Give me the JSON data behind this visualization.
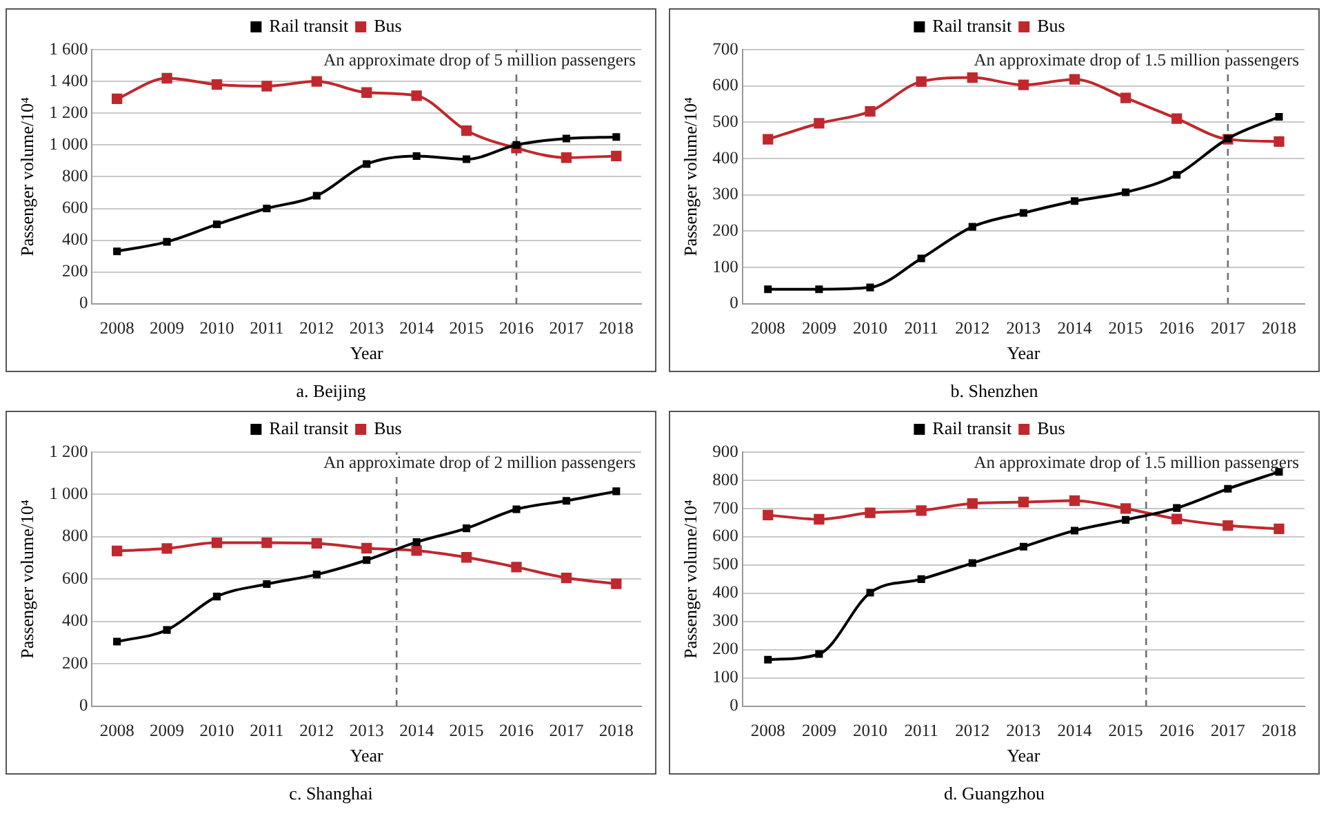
{
  "chart_data": [
    {
      "type": "line",
      "title": "a. Beijing",
      "xlabel": "Year",
      "ylabel": "Passenger volume/10⁴",
      "x": [
        2008,
        2009,
        2010,
        2011,
        2012,
        2013,
        2014,
        2015,
        2016,
        2017,
        2018
      ],
      "xlim": [
        2007.5,
        2018.5
      ],
      "xticks": [
        2008,
        2009,
        2010,
        2011,
        2012,
        2013,
        2014,
        2015,
        2016,
        2017,
        2018
      ],
      "ylim": [
        0,
        1600
      ],
      "yticks": [
        0,
        200,
        400,
        600,
        800,
        {
          "value": 1000,
          "label": "1 000"
        },
        {
          "value": 1200,
          "label": "1 200"
        },
        {
          "value": 1400,
          "label": "1 400"
        },
        {
          "value": 1600,
          "label": "1 600"
        }
      ],
      "grid": "y",
      "legend": "top",
      "marker": "square",
      "line_style": "solid",
      "series": [
        {
          "name": "Rail transit",
          "color": "#000000",
          "values": [
            330,
            390,
            500,
            600,
            680,
            880,
            930,
            910,
            1000,
            1040,
            1050
          ]
        },
        {
          "name": "Bus",
          "color": "#c0282e",
          "values": [
            1290,
            1420,
            1380,
            1370,
            1400,
            1330,
            1310,
            1090,
            980,
            920,
            930
          ]
        }
      ],
      "ref_lines": [
        {
          "axis": "x",
          "value": 2016,
          "color": "#707070",
          "line_style": "dashed"
        }
      ],
      "annotations": [
        "An approximate drop of 5 million passengers"
      ]
    },
    {
      "type": "line",
      "title": "b. Shenzhen",
      "xlabel": "Year",
      "ylabel": "Passenger volume/10⁴",
      "x": [
        2008,
        2009,
        2010,
        2011,
        2012,
        2013,
        2014,
        2015,
        2016,
        2017,
        2018
      ],
      "xlim": [
        2007.5,
        2018.5
      ],
      "xticks": [
        2008,
        2009,
        2010,
        2011,
        2012,
        2013,
        2014,
        2015,
        2016,
        2017,
        2018
      ],
      "ylim": [
        0,
        700
      ],
      "yticks": [
        0,
        100,
        200,
        300,
        400,
        500,
        600,
        700
      ],
      "grid": "y",
      "legend": "top",
      "marker": "square",
      "line_style": "solid",
      "series": [
        {
          "name": "Rail transit",
          "color": "#000000",
          "values": [
            40,
            40,
            45,
            125,
            212,
            250,
            283,
            307,
            355,
            455,
            515
          ]
        },
        {
          "name": "Bus",
          "color": "#c0282e",
          "values": [
            453,
            497,
            530,
            612,
            623,
            603,
            618,
            567,
            510,
            453,
            447
          ]
        }
      ],
      "ref_lines": [
        {
          "axis": "x",
          "value": 2017,
          "color": "#707070",
          "line_style": "dashed"
        }
      ],
      "annotations": [
        "An approximate drop of 1.5 million passengers"
      ]
    },
    {
      "type": "line",
      "title": "c. Shanghai",
      "xlabel": "Year",
      "ylabel": "Passenger volume/10⁴",
      "x": [
        2008,
        2009,
        2010,
        2011,
        2012,
        2013,
        2014,
        2015,
        2016,
        2017,
        2018
      ],
      "xlim": [
        2007.5,
        2018.5
      ],
      "xticks": [
        2008,
        2009,
        2010,
        2011,
        2012,
        2013,
        2014,
        2015,
        2016,
        2017,
        2018
      ],
      "ylim": [
        0,
        1200
      ],
      "yticks": [
        0,
        200,
        400,
        600,
        800,
        {
          "value": 1000,
          "label": "1 000"
        },
        {
          "value": 1200,
          "label": "1 200"
        }
      ],
      "grid": "y",
      "legend": "top",
      "marker": "square",
      "line_style": "solid",
      "series": [
        {
          "name": "Rail transit",
          "color": "#000000",
          "values": [
            305,
            360,
            518,
            577,
            622,
            690,
            775,
            840,
            930,
            970,
            1015
          ]
        },
        {
          "name": "Bus",
          "color": "#c0282e",
          "values": [
            733,
            745,
            772,
            772,
            769,
            746,
            735,
            703,
            657,
            606,
            578
          ]
        }
      ],
      "ref_lines": [
        {
          "axis": "x",
          "value": 2013.6,
          "color": "#707070",
          "line_style": "dashed"
        }
      ],
      "annotations": [
        "An approximate drop of 2 million passengers"
      ]
    },
    {
      "type": "line",
      "title": "d. Guangzhou",
      "xlabel": "Year",
      "ylabel": "Passenger volume/10⁴",
      "x": [
        2008,
        2009,
        2010,
        2011,
        2012,
        2013,
        2014,
        2015,
        2016,
        2017,
        2018
      ],
      "xlim": [
        2007.5,
        2018.5
      ],
      "xticks": [
        2008,
        2009,
        2010,
        2011,
        2012,
        2013,
        2014,
        2015,
        2016,
        2017,
        2018
      ],
      "ylim": [
        0,
        900
      ],
      "yticks": [
        0,
        100,
        200,
        300,
        400,
        500,
        600,
        700,
        800,
        900
      ],
      "grid": "y",
      "legend": "top",
      "marker": "square",
      "line_style": "solid",
      "series": [
        {
          "name": "Rail transit",
          "color": "#000000",
          "values": [
            165,
            185,
            402,
            450,
            507,
            565,
            622,
            660,
            702,
            770,
            830
          ]
        },
        {
          "name": "Bus",
          "color": "#c0282e",
          "values": [
            677,
            662,
            685,
            693,
            718,
            723,
            728,
            700,
            663,
            640,
            628
          ]
        }
      ],
      "ref_lines": [
        {
          "axis": "x",
          "value": 2015.4,
          "color": "#707070",
          "line_style": "dashed"
        }
      ],
      "annotations": [
        "An approximate drop of 1.5 million passengers"
      ]
    }
  ]
}
